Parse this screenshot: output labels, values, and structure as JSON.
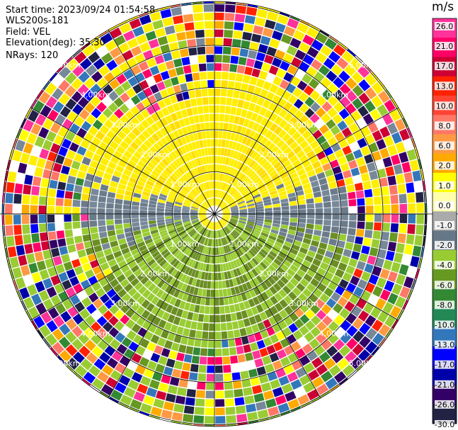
{
  "info": {
    "start_time": "Start time: 2023/09/24 01:54:58",
    "site": "WLS200s-181",
    "field": "Field: VEL",
    "elevation": "Elevation(deg): 35.30",
    "nrays": "NRays: 120"
  },
  "colorbar": {
    "units": "m/s",
    "ticks": [
      "26.0",
      "21.0",
      "17.0",
      "13.0",
      "10.0",
      "8.0",
      "6.0",
      "2.0",
      "1.0",
      "0.0",
      "-1.0",
      "-2.0",
      "-4.0",
      "-6.0",
      "-8.0",
      "-10.0",
      "-13.0",
      "-17.0",
      "-21.0",
      "-26.0",
      "-30.0"
    ],
    "colors": [
      "#ff3399",
      "#ff0066",
      "#cc0033",
      "#ff2200",
      "#ff4433",
      "#ff7766",
      "#ff9944",
      "#ffaa00",
      "#ffff00",
      "#ffffaa",
      "#aaaaaa",
      "#667788",
      "#99cc33",
      "#669922",
      "#338833",
      "#228855",
      "#3377bb",
      "#0000ff",
      "#0000aa",
      "#330066",
      "#222244"
    ]
  },
  "chart_data": {
    "type": "ppi",
    "title": "Start time: 2023/09/24 01:54:58",
    "field": "VEL",
    "units": "m/s",
    "elevation_deg": 35.3,
    "nrays": 120,
    "range_ring_labels": [
      "1.00km",
      "2.00km",
      "3.00km",
      "4.00km",
      "5.00km"
    ],
    "range_ring_km": [
      1,
      2,
      3,
      4,
      5
    ],
    "rings_in_plot": [
      1,
      2,
      3,
      4,
      5,
      6
    ],
    "spoke_angles_deg": [
      0,
      30,
      60,
      90,
      120,
      150,
      180,
      210,
      240,
      270,
      300,
      330
    ],
    "data_range": [
      -30,
      26
    ],
    "notes": "Radial velocity: yellow (+1..+2 m/s) to the north, grey (~0) along east-west, green (-1..-4 m/s) to the south; noisy random values beyond ~3 km range."
  }
}
